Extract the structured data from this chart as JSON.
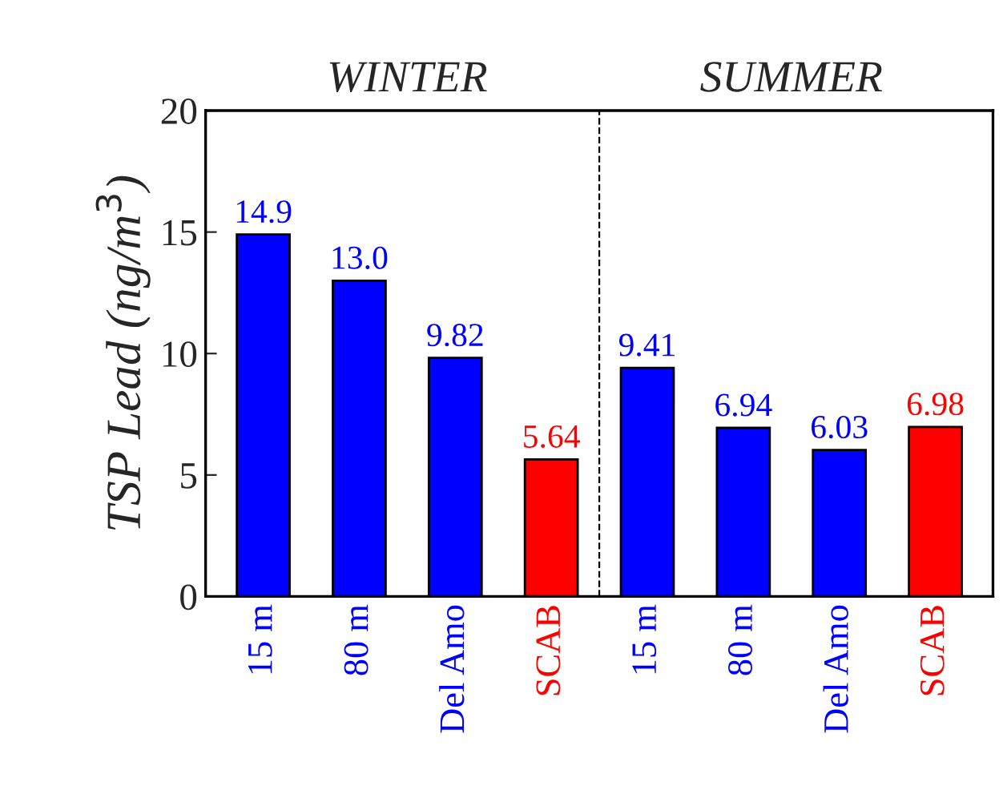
{
  "chart_data": {
    "type": "bar",
    "ylabel": "TSP Lead (ng/m$^{3}$)",
    "categories": [
      "15 m",
      "80 m",
      "Del Amo",
      "SCAB",
      "15 m",
      "80 m",
      "Del Amo",
      "SCAB"
    ],
    "values": [
      14.9,
      13.0,
      9.82,
      5.64,
      9.41,
      6.94,
      6.03,
      6.98
    ],
    "colors": [
      "#0000ff",
      "#0000ff",
      "#0000ff",
      "#ff0000",
      "#0000ff",
      "#0000ff",
      "#0000ff",
      "#ff0000"
    ],
    "value_labels": [
      "14.9",
      "13.0",
      "9.82",
      "5.64",
      "9.41",
      "6.94",
      "6.03",
      "6.98"
    ],
    "ylim": [
      0,
      20
    ],
    "yticks": [
      0,
      5,
      10,
      15,
      20
    ],
    "annotations": [
      "WINTER",
      "SUMMER"
    ],
    "grid": false,
    "legend": false
  }
}
